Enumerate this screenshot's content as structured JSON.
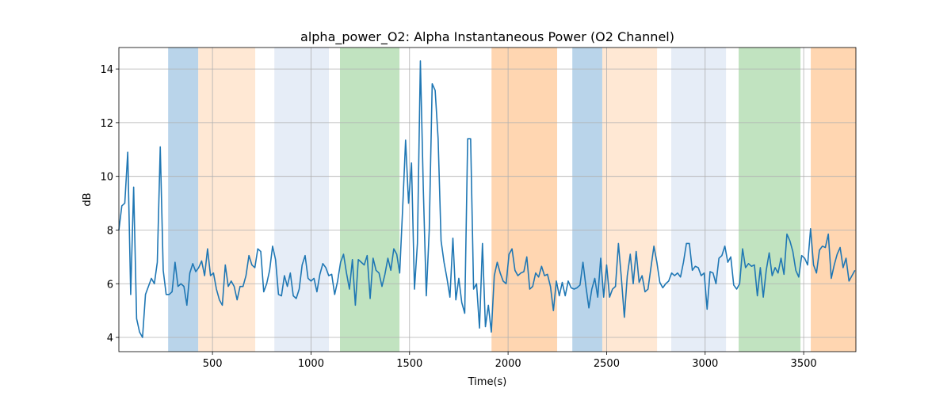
{
  "chart_data": {
    "type": "line",
    "title": "alpha_power_O2: Alpha Instantaneous Power (O2 Channel)",
    "x_label": "Time(s)",
    "y_label": "dB",
    "xlim": [
      25,
      3765
    ],
    "ylim": [
      3.47,
      14.8
    ],
    "xticks": [
      500,
      1000,
      1500,
      2000,
      2500,
      3000,
      3500
    ],
    "yticks": [
      4,
      6,
      8,
      10,
      12,
      14
    ],
    "grid": true,
    "spans": [
      {
        "x0": 275,
        "x1": 428,
        "color": "#b9d4ea"
      },
      {
        "x0": 428,
        "x1": 717,
        "color": "#ffe8d4"
      },
      {
        "x0": 814,
        "x1": 1091,
        "color": "#e6edf7"
      },
      {
        "x0": 1147,
        "x1": 1449,
        "color": "#c1e3c0"
      },
      {
        "x0": 1916,
        "x1": 2249,
        "color": "#ffd6b1"
      },
      {
        "x0": 2326,
        "x1": 2478,
        "color": "#b9d4ea"
      },
      {
        "x0": 2478,
        "x1": 2756,
        "color": "#ffe8d4"
      },
      {
        "x0": 2828,
        "x1": 3106,
        "color": "#e6edf7"
      },
      {
        "x0": 3170,
        "x1": 3484,
        "color": "#c1e3c0"
      },
      {
        "x0": 3536,
        "x1": 3765,
        "color": "#ffd6b1"
      }
    ],
    "x": [
      25,
      40,
      55,
      70,
      85,
      100,
      115,
      130,
      145,
      160,
      175,
      190,
      205,
      220,
      235,
      250,
      265,
      280,
      295,
      310,
      325,
      340,
      355,
      370,
      385,
      400,
      415,
      430,
      445,
      460,
      475,
      490,
      505,
      520,
      535,
      550,
      565,
      580,
      595,
      610,
      625,
      640,
      655,
      670,
      685,
      700,
      715,
      730,
      745,
      760,
      775,
      790,
      805,
      820,
      835,
      850,
      865,
      880,
      895,
      910,
      925,
      940,
      955,
      970,
      985,
      1000,
      1015,
      1030,
      1045,
      1060,
      1075,
      1090,
      1105,
      1120,
      1135,
      1150,
      1165,
      1180,
      1195,
      1210,
      1225,
      1240,
      1255,
      1270,
      1285,
      1300,
      1315,
      1330,
      1345,
      1360,
      1375,
      1390,
      1405,
      1420,
      1435,
      1450,
      1465,
      1480,
      1495,
      1510,
      1525,
      1540,
      1555,
      1570,
      1585,
      1600,
      1615,
      1630,
      1645,
      1660,
      1675,
      1690,
      1705,
      1720,
      1735,
      1750,
      1765,
      1780,
      1795,
      1810,
      1825,
      1840,
      1855,
      1870,
      1885,
      1900,
      1915,
      1930,
      1945,
      1960,
      1975,
      1990,
      2005,
      2020,
      2035,
      2050,
      2065,
      2080,
      2095,
      2110,
      2125,
      2140,
      2155,
      2170,
      2185,
      2200,
      2215,
      2230,
      2245,
      2260,
      2275,
      2290,
      2305,
      2320,
      2335,
      2350,
      2365,
      2380,
      2395,
      2410,
      2425,
      2440,
      2455,
      2470,
      2485,
      2500,
      2515,
      2530,
      2545,
      2560,
      2575,
      2590,
      2605,
      2620,
      2635,
      2650,
      2665,
      2680,
      2695,
      2710,
      2725,
      2740,
      2755,
      2770,
      2785,
      2800,
      2815,
      2830,
      2845,
      2860,
      2875,
      2890,
      2905,
      2920,
      2935,
      2950,
      2965,
      2980,
      2995,
      3010,
      3025,
      3040,
      3055,
      3070,
      3085,
      3100,
      3115,
      3130,
      3145,
      3160,
      3175,
      3190,
      3205,
      3220,
      3235,
      3250,
      3265,
      3280,
      3295,
      3310,
      3325,
      3340,
      3355,
      3370,
      3385,
      3400,
      3415,
      3430,
      3445,
      3460,
      3475,
      3490,
      3505,
      3520,
      3535,
      3550,
      3565,
      3580,
      3595,
      3610,
      3625,
      3640,
      3655,
      3670,
      3685,
      3700,
      3715,
      3730,
      3745,
      3760
    ],
    "series": [
      {
        "name": "alpha_power_O2",
        "color": "#1f77b4",
        "values": [
          8.0,
          8.9,
          9.0,
          10.9,
          5.6,
          9.6,
          4.7,
          4.2,
          4.0,
          5.6,
          5.9,
          6.2,
          6.0,
          6.8,
          11.1,
          6.5,
          5.6,
          5.6,
          5.7,
          6.8,
          5.9,
          6.0,
          5.9,
          5.2,
          6.4,
          6.75,
          6.45,
          6.6,
          6.85,
          6.3,
          7.3,
          6.3,
          6.4,
          5.8,
          5.4,
          5.2,
          6.7,
          5.9,
          6.1,
          5.9,
          5.4,
          5.9,
          5.9,
          6.3,
          7.05,
          6.7,
          6.6,
          7.3,
          7.2,
          5.7,
          6.0,
          6.5,
          7.4,
          6.9,
          5.6,
          5.55,
          6.3,
          5.9,
          6.4,
          5.55,
          5.45,
          5.8,
          6.7,
          7.05,
          6.2,
          6.1,
          6.2,
          5.7,
          6.35,
          6.75,
          6.6,
          6.3,
          6.35,
          5.6,
          6.1,
          6.8,
          7.1,
          6.4,
          5.8,
          6.9,
          5.2,
          6.9,
          6.8,
          6.7,
          7.05,
          5.45,
          6.95,
          6.5,
          6.4,
          5.9,
          6.35,
          6.95,
          6.5,
          7.3,
          7.1,
          6.4,
          8.8,
          11.35,
          9.0,
          10.5,
          5.8,
          7.5,
          14.3,
          9.5,
          5.55,
          8.0,
          13.45,
          13.2,
          11.4,
          7.6,
          6.8,
          6.2,
          5.5,
          7.7,
          5.4,
          6.2,
          5.3,
          4.9,
          11.4,
          11.4,
          5.8,
          6.0,
          4.35,
          7.5,
          4.4,
          5.2,
          4.2,
          6.3,
          6.8,
          6.4,
          6.1,
          6.0,
          7.1,
          7.3,
          6.5,
          6.3,
          6.4,
          6.45,
          7.0,
          5.8,
          5.9,
          6.4,
          6.25,
          6.65,
          6.3,
          6.35,
          5.9,
          5.0,
          6.1,
          5.55,
          6.05,
          5.55,
          6.1,
          5.85,
          5.8,
          5.85,
          5.95,
          6.8,
          5.9,
          5.1,
          5.8,
          6.2,
          5.5,
          6.95,
          5.5,
          6.7,
          5.5,
          5.8,
          5.9,
          7.5,
          6.2,
          4.75,
          6.3,
          7.1,
          6.0,
          7.2,
          6.05,
          6.3,
          5.7,
          5.8,
          6.6,
          7.4,
          6.8,
          6.05,
          5.85,
          6.0,
          6.1,
          6.4,
          6.3,
          6.4,
          6.25,
          6.8,
          7.5,
          7.5,
          6.5,
          6.65,
          6.6,
          6.3,
          6.4,
          5.05,
          6.45,
          6.4,
          6.0,
          6.95,
          7.05,
          7.4,
          6.8,
          7.0,
          5.95,
          5.8,
          6.0,
          7.3,
          6.6,
          6.75,
          6.65,
          6.7,
          5.55,
          6.6,
          5.5,
          6.5,
          7.15,
          6.3,
          6.6,
          6.4,
          6.95,
          6.35,
          7.85,
          7.6,
          7.2,
          6.5,
          6.25,
          7.05,
          6.95,
          6.7,
          8.05,
          6.7,
          6.4,
          7.25,
          7.4,
          7.35,
          7.85,
          6.2,
          6.7,
          7.1,
          7.35,
          6.6,
          6.95,
          6.1,
          6.3,
          6.5
        ]
      }
    ]
  }
}
